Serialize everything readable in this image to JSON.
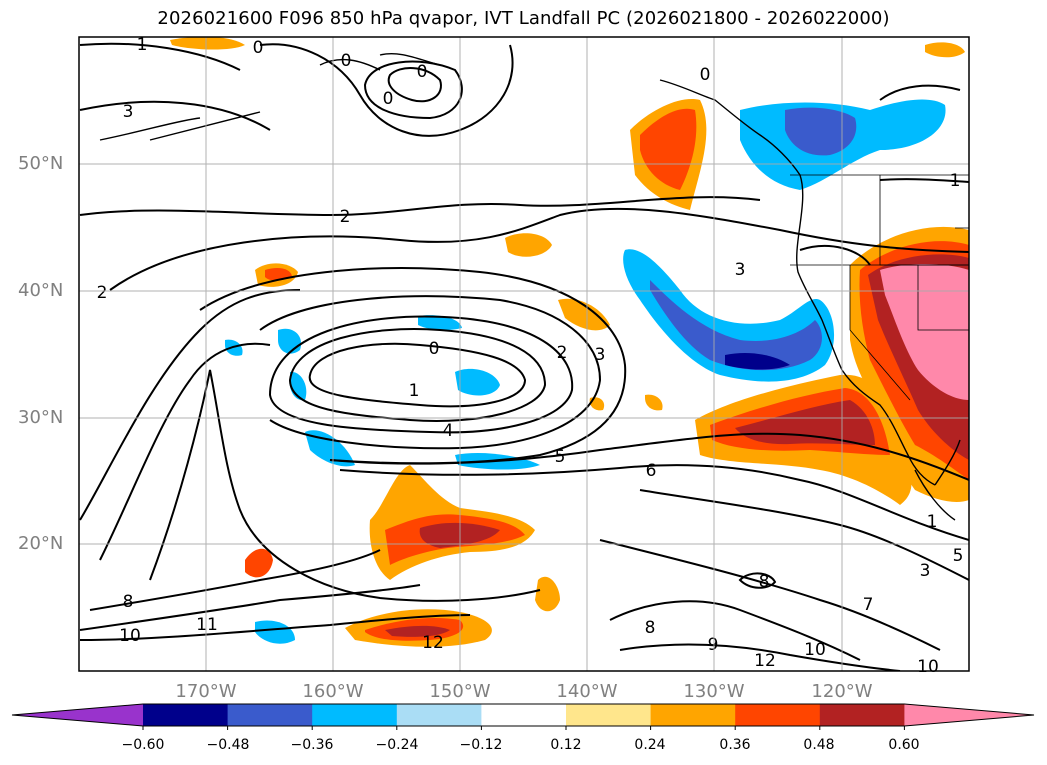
{
  "title": "2026021600 F096 850 hPa qvapor, IVT Landfall PC (2026021800 - 2026022000)",
  "lat_labels": [
    "50°N",
    "40°N",
    "30°N",
    "20°N"
  ],
  "lon_labels": [
    "170°W",
    "160°W",
    "150°W",
    "140°W",
    "130°W",
    "120°W"
  ],
  "colorbar": {
    "levels": [
      "−0.60",
      "−0.48",
      "−0.36",
      "−0.24",
      "−0.12",
      "0.12",
      "0.24",
      "0.36",
      "0.48",
      "0.60"
    ],
    "colors": [
      "#9933cc",
      "#00008b",
      "#3a5bcc",
      "#00bbff",
      "#aaddf5",
      "#ffffff",
      "#ffe68c",
      "#ffa500",
      "#ff4500",
      "#b22222",
      "#ff88aa"
    ]
  },
  "contour_labels": [
    "1",
    "0",
    "0",
    "0",
    "3",
    "0",
    "0",
    "2",
    "2",
    "3",
    "1",
    "0",
    "2",
    "3",
    "1",
    "4",
    "5",
    "6",
    "8",
    "10",
    "11",
    "12",
    "8",
    "9",
    "12",
    "10",
    "8",
    "7",
    "3",
    "1",
    "5",
    "10"
  ]
}
